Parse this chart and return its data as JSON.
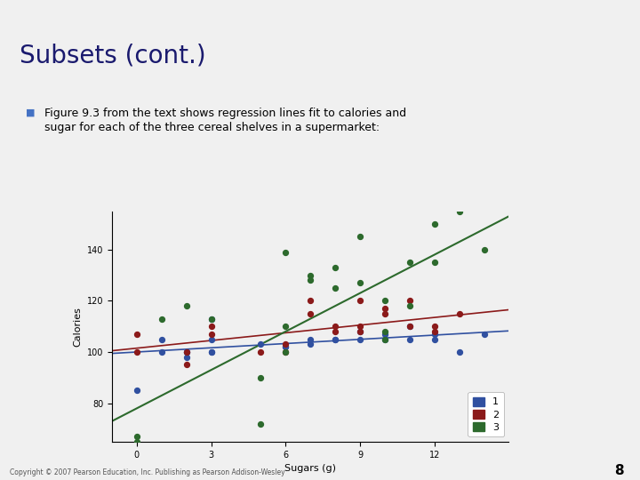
{
  "title": "Subsets (cont.)",
  "bullet_text": "Figure 9.3 from the text shows regression lines fit to calories and\nsugar for each of the three cereal shelves in a supermarket:",
  "footer": "Copyright © 2007 Pearson Education, Inc. Publishing as Pearson Addison-Wesley",
  "page_number": "8",
  "bg_color": "#f0f0f0",
  "title_color": "#1a1a6e",
  "header_bar_color": "#1a1a6e",
  "header_bar2_color": "#4472c4",
  "bullet_color": "#4472c4",
  "shelf1_color": "#3050a0",
  "shelf2_color": "#8b1a1a",
  "shelf3_color": "#2d6a2d",
  "xlabel": "Sugars (g)",
  "ylabel": "Calories",
  "xlim": [
    -1,
    15
  ],
  "ylim": [
    65,
    155
  ],
  "xticks": [
    0,
    3,
    6,
    9,
    12
  ],
  "yticks": [
    80,
    100,
    120,
    140
  ],
  "shelf1_x": [
    0,
    1,
    1,
    2,
    2,
    2,
    3,
    3,
    3,
    3,
    5,
    6,
    6,
    7,
    7,
    8,
    8,
    9,
    9,
    10,
    10,
    11,
    11,
    12,
    12,
    13,
    14
  ],
  "shelf1_y": [
    85,
    100,
    105,
    98,
    100,
    100,
    113,
    105,
    100,
    100,
    103,
    102,
    102,
    103,
    105,
    105,
    105,
    105,
    108,
    105,
    107,
    105,
    110,
    105,
    107,
    100,
    107
  ],
  "shelf2_x": [
    0,
    0,
    2,
    2,
    3,
    3,
    5,
    6,
    6,
    7,
    7,
    8,
    8,
    9,
    9,
    9,
    10,
    10,
    11,
    11,
    12,
    12,
    13
  ],
  "shelf2_y": [
    107,
    100,
    100,
    95,
    107,
    110,
    100,
    103,
    100,
    115,
    120,
    110,
    108,
    108,
    110,
    120,
    115,
    117,
    110,
    120,
    108,
    110,
    115
  ],
  "shelf3_x": [
    0,
    0,
    1,
    2,
    3,
    5,
    5,
    6,
    6,
    6,
    7,
    7,
    8,
    8,
    9,
    9,
    10,
    10,
    10,
    11,
    11,
    12,
    12,
    13,
    14
  ],
  "shelf3_y": [
    67,
    65,
    113,
    118,
    113,
    90,
    72,
    139,
    110,
    100,
    128,
    130,
    125,
    133,
    145,
    127,
    105,
    108,
    120,
    118,
    135,
    150,
    135,
    155,
    140
  ],
  "reg1_slope": 0.55,
  "reg1_intercept": 100.0,
  "reg2_slope": 1.0,
  "reg2_intercept": 101.5,
  "reg3_slope": 5.0,
  "reg3_intercept": 78.0
}
